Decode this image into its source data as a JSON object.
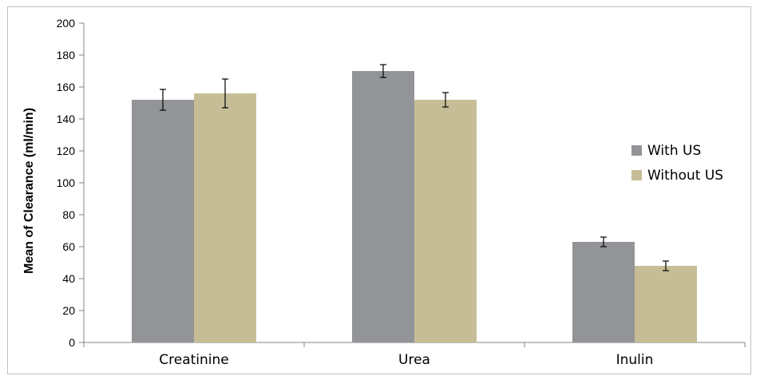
{
  "chart_data": {
    "type": "bar",
    "title": "",
    "xlabel": "",
    "ylabel": "Mean of Clearance (ml/min)",
    "ylim": [
      0,
      200
    ],
    "yticks": [
      0,
      20,
      40,
      60,
      80,
      100,
      120,
      140,
      160,
      180,
      200
    ],
    "categories": [
      "Creatinine",
      "Urea",
      "Inulin"
    ],
    "series": [
      {
        "name": "With US",
        "color": "#929497",
        "values": [
          152,
          170,
          63
        ],
        "errors": [
          6.5,
          4,
          3
        ]
      },
      {
        "name": "Without US",
        "color": "#c6bd96",
        "values": [
          156,
          152,
          48
        ],
        "errors": [
          9,
          4.5,
          3
        ]
      }
    ],
    "grid": false,
    "legend": "right"
  }
}
